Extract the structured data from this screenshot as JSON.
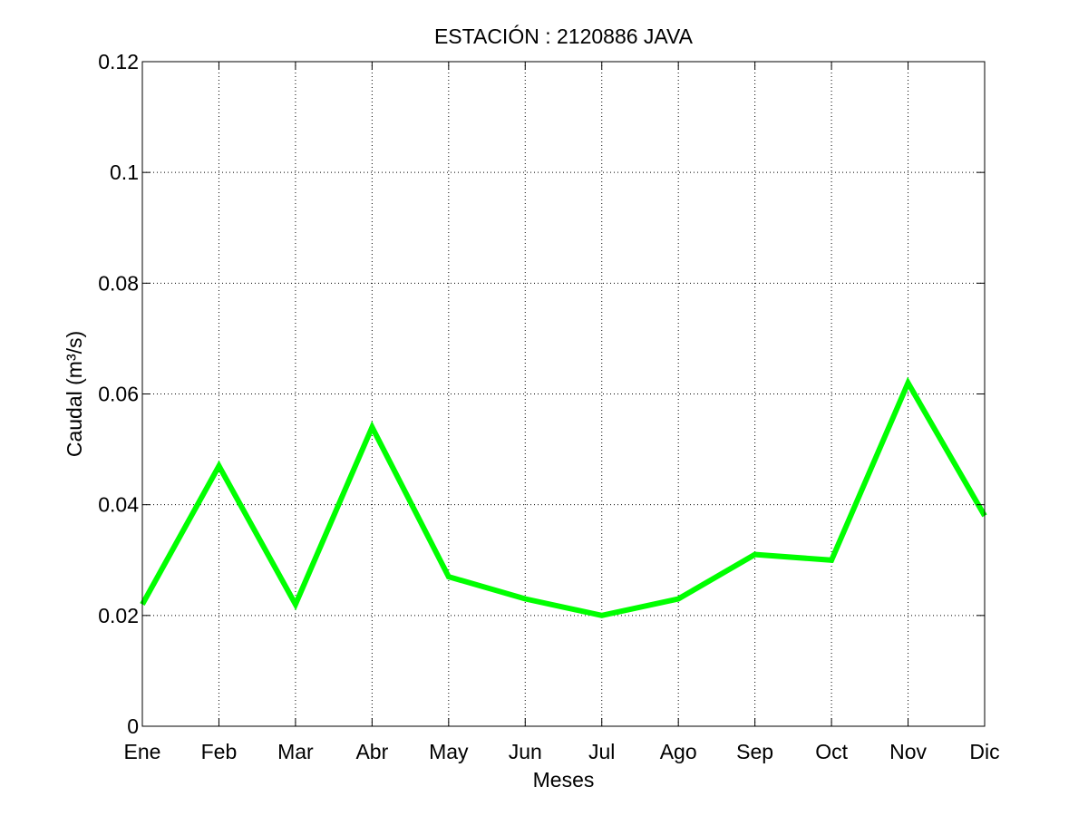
{
  "chart_data": {
    "type": "line",
    "title": "ESTACIÓN :  2120886  JAVA",
    "xlabel": "Meses",
    "ylabel": "Caudal (m³/s)",
    "categories": [
      "Ene",
      "Feb",
      "Mar",
      "Abr",
      "May",
      "Jun",
      "Jul",
      "Ago",
      "Sep",
      "Oct",
      "Nov",
      "Dic"
    ],
    "series": [
      {
        "values": [
          0.022,
          0.047,
          0.022,
          0.054,
          0.027,
          0.023,
          0.02,
          0.023,
          0.031,
          0.03,
          0.062,
          0.038
        ],
        "color": "#00ff00"
      }
    ],
    "ylim": [
      0,
      0.12
    ],
    "yticks": [
      0,
      0.02,
      0.04,
      0.06,
      0.08,
      0.1,
      0.12
    ],
    "ytick_labels": [
      "0",
      "0.02",
      "0.04",
      "0.06",
      "0.08",
      "0.1",
      "0.12"
    ],
    "grid": true,
    "legend": "none"
  }
}
